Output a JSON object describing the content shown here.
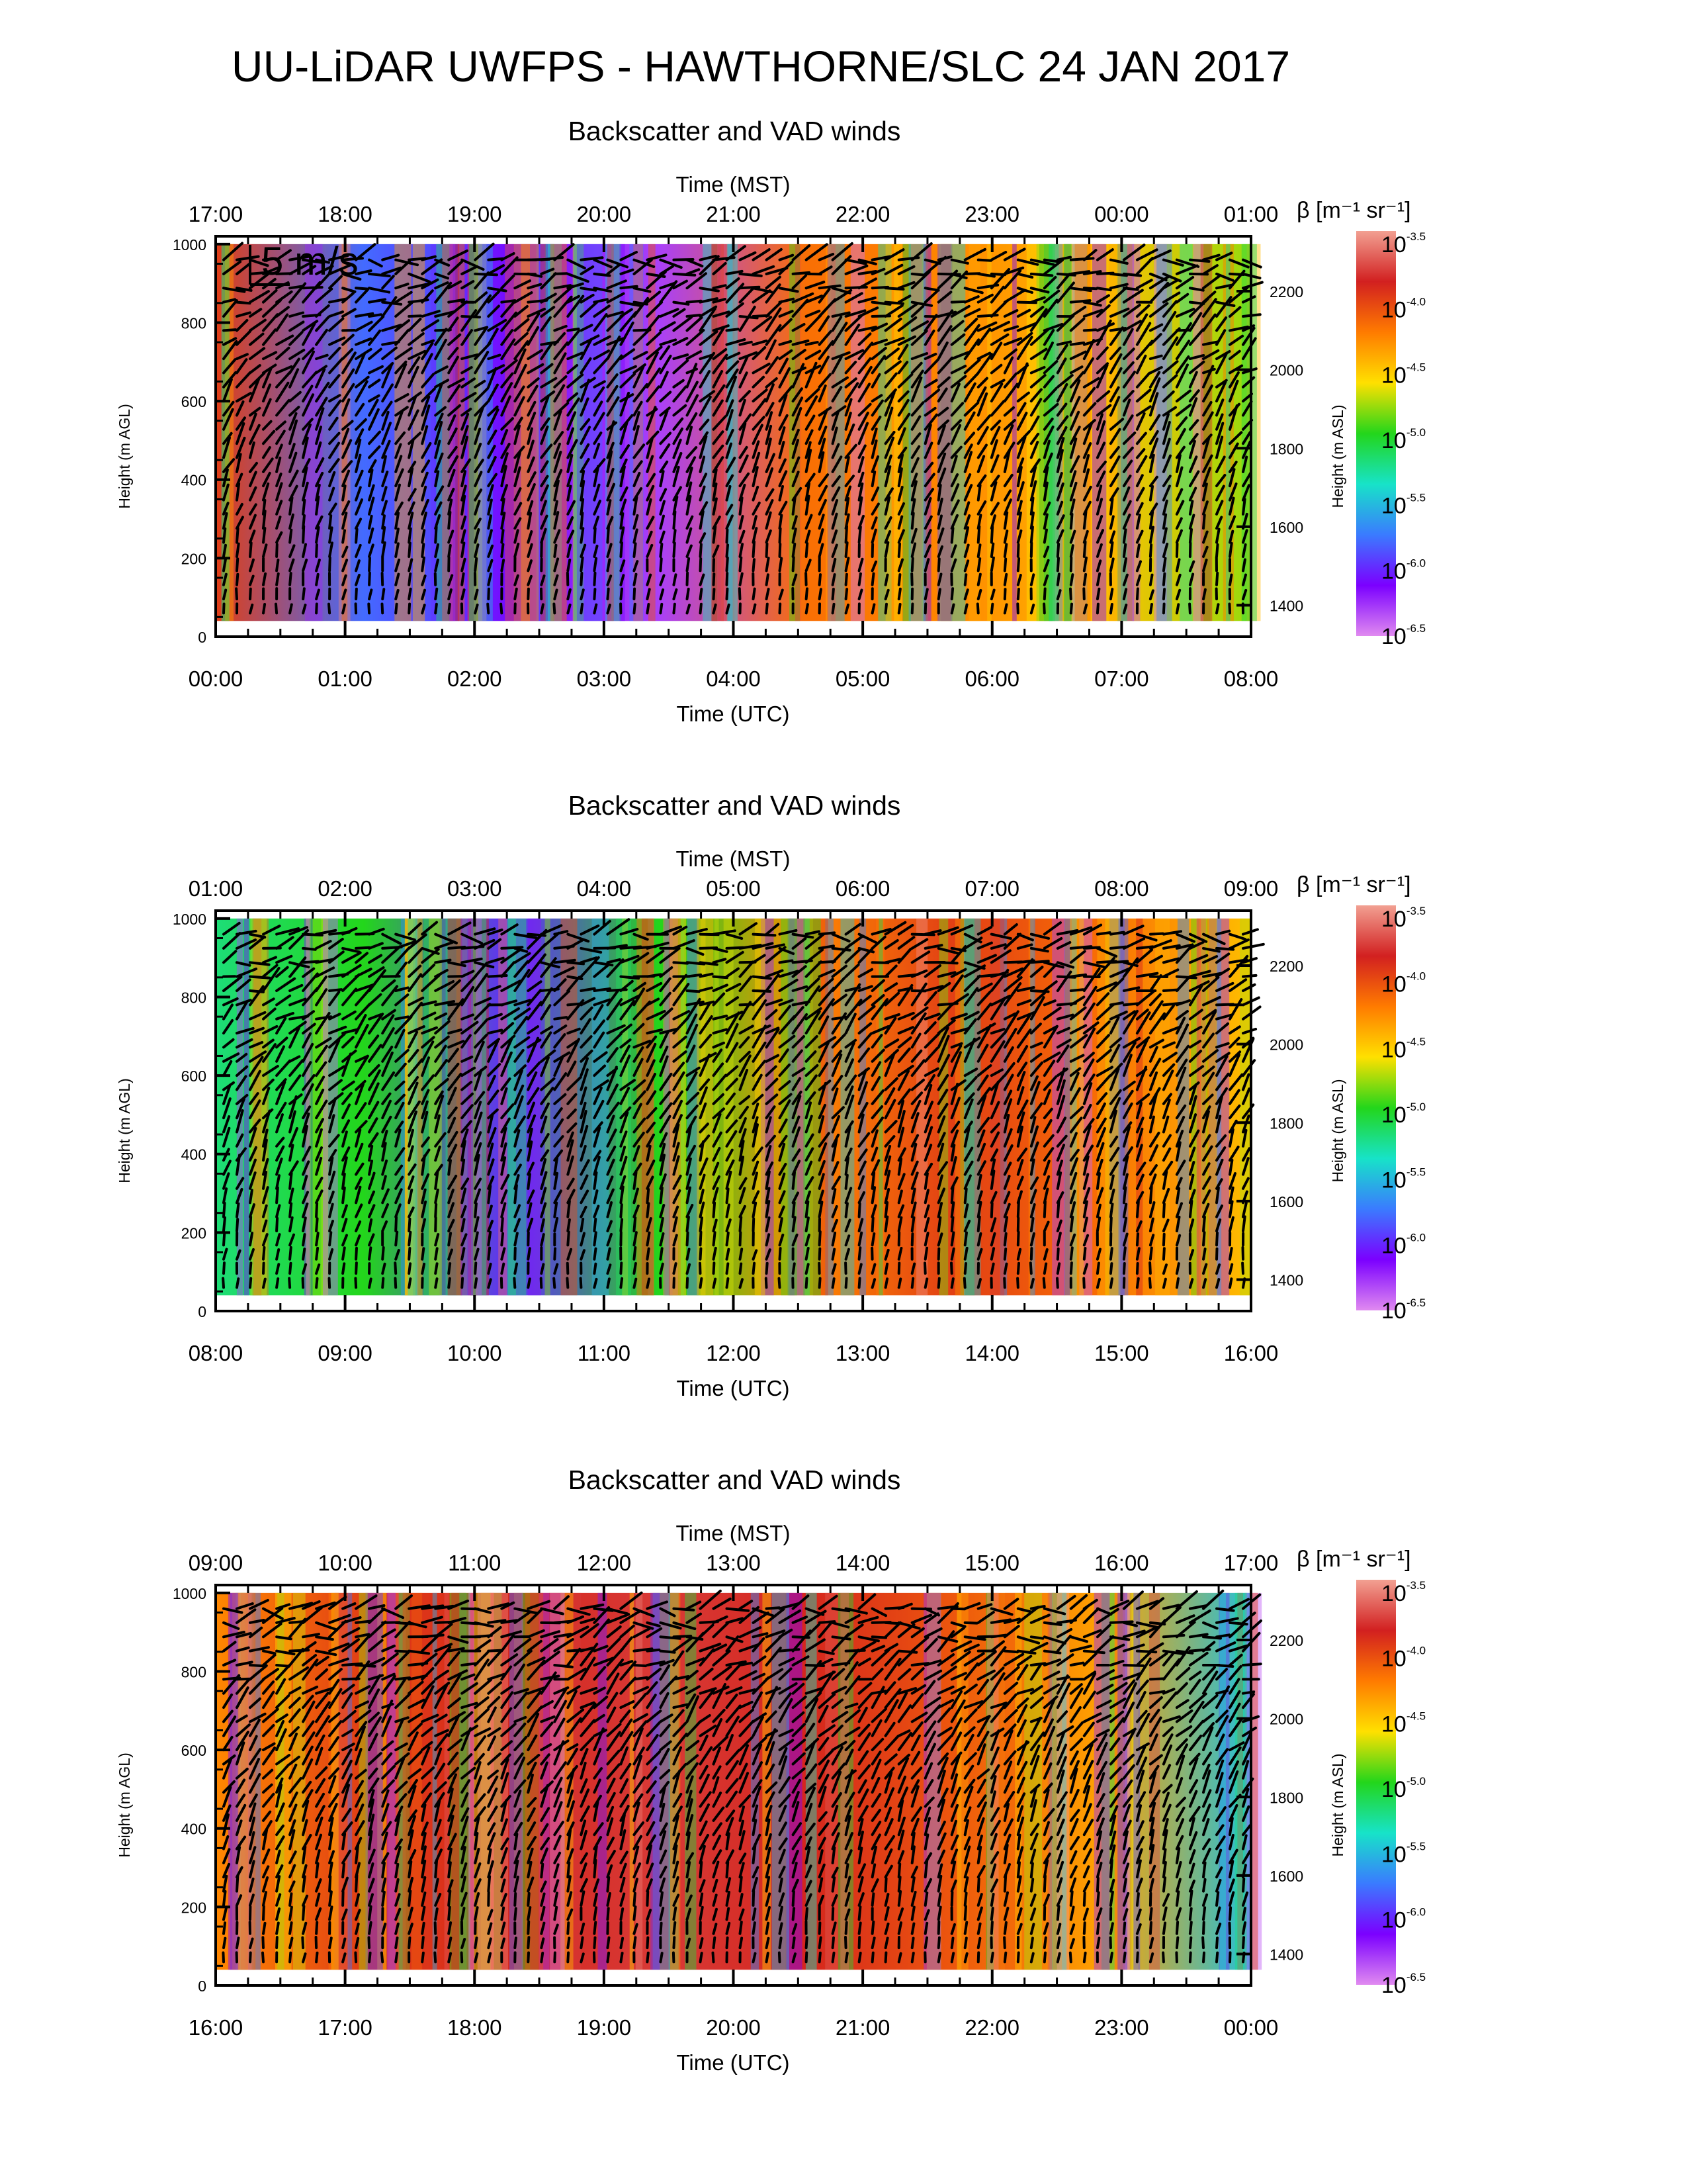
{
  "title": "UU-LiDAR UWFPS - HAWTHORNE/SLC 24 JAN 2017",
  "colorbar": {
    "label": "β [m⁻¹ sr⁻¹]",
    "ticks": [
      "10-3.5",
      "10-4.0",
      "10-4.5",
      "10-5.0",
      "10-5.5",
      "10-6.0",
      "10-6.5"
    ],
    "tick_base": "10",
    "tick_exponents": [
      "-3.5",
      "-4.0",
      "-4.5",
      "-5.0",
      "-5.5",
      "-6.0",
      "-6.5"
    ],
    "colors": [
      "#f2a092",
      "#d22020",
      "#ff7b00",
      "#ffe000",
      "#23d61b",
      "#17e3c8",
      "#3a7bff",
      "#7b00ff",
      "#e08af0"
    ]
  },
  "vector_key": "5 m/s",
  "chart_data": [
    {
      "type": "heatmap",
      "title": "Backscatter and VAD winds",
      "xlabel_top": "Time (MST)",
      "xlabel": "Time (UTC)",
      "ylabel": "Height (m AGL)",
      "ylabel_right": "Height (m ASL)",
      "x_ticks_top": [
        "17:00",
        "18:00",
        "19:00",
        "20:00",
        "21:00",
        "22:00",
        "23:00",
        "00:00",
        "01:00"
      ],
      "x_ticks": [
        "00:00",
        "01:00",
        "02:00",
        "03:00",
        "04:00",
        "05:00",
        "06:00",
        "07:00",
        "08:00"
      ],
      "xlim": [
        "00:00",
        "08:00"
      ],
      "y_ticks": [
        "0",
        "200",
        "400",
        "600",
        "800",
        "1000"
      ],
      "y_ticks_right": [
        "1400",
        "1600",
        "1800",
        "2000",
        "2200"
      ],
      "ylim": [
        0,
        1020
      ],
      "backscatter_exponent_by_hour": [
        -4.0,
        -5.8,
        -6.1,
        -6.3,
        -4.2,
        -4.3,
        -4.5,
        -4.8
      ],
      "show_vector_key": true
    },
    {
      "type": "heatmap",
      "title": "Backscatter and VAD winds",
      "xlabel_top": "Time (MST)",
      "xlabel": "Time (UTC)",
      "ylabel": "Height (m AGL)",
      "ylabel_right": "Height (m ASL)",
      "x_ticks_top": [
        "01:00",
        "02:00",
        "03:00",
        "04:00",
        "05:00",
        "06:00",
        "07:00",
        "08:00",
        "09:00"
      ],
      "x_ticks": [
        "08:00",
        "09:00",
        "10:00",
        "11:00",
        "12:00",
        "13:00",
        "14:00",
        "15:00",
        "16:00"
      ],
      "xlim": [
        "08:00",
        "16:00"
      ],
      "y_ticks": [
        "0",
        "200",
        "400",
        "600",
        "800",
        "1000"
      ],
      "y_ticks_right": [
        "1400",
        "1600",
        "1800",
        "2000",
        "2200"
      ],
      "ylim": [
        0,
        1020
      ],
      "backscatter_exponent_by_hour": [
        -5.2,
        -5.0,
        -6.0,
        -5.0,
        -4.3,
        -4.0,
        -4.2,
        -4.5
      ],
      "show_vector_key": false
    },
    {
      "type": "heatmap",
      "title": "Backscatter and VAD winds",
      "xlabel_top": "Time (MST)",
      "xlabel": "Time (UTC)",
      "ylabel": "Height (m AGL)",
      "ylabel_right": "Height (m ASL)",
      "x_ticks_top": [
        "09:00",
        "10:00",
        "11:00",
        "12:00",
        "13:00",
        "14:00",
        "15:00",
        "16:00",
        "17:00"
      ],
      "x_ticks": [
        "16:00",
        "17:00",
        "18:00",
        "19:00",
        "20:00",
        "21:00",
        "22:00",
        "23:00",
        "00:00"
      ],
      "xlim": [
        "16:00",
        "00:00"
      ],
      "y_ticks": [
        "0",
        "200",
        "400",
        "600",
        "800",
        "1000"
      ],
      "y_ticks_right": [
        "1400",
        "1600",
        "1800",
        "2000",
        "2200"
      ],
      "ylim": [
        0,
        1020
      ],
      "backscatter_exponent_by_hour": [
        -4.3,
        -4.0,
        -3.9,
        -3.8,
        -3.9,
        -4.1,
        -4.4,
        -5.5
      ],
      "show_vector_key": false
    }
  ]
}
